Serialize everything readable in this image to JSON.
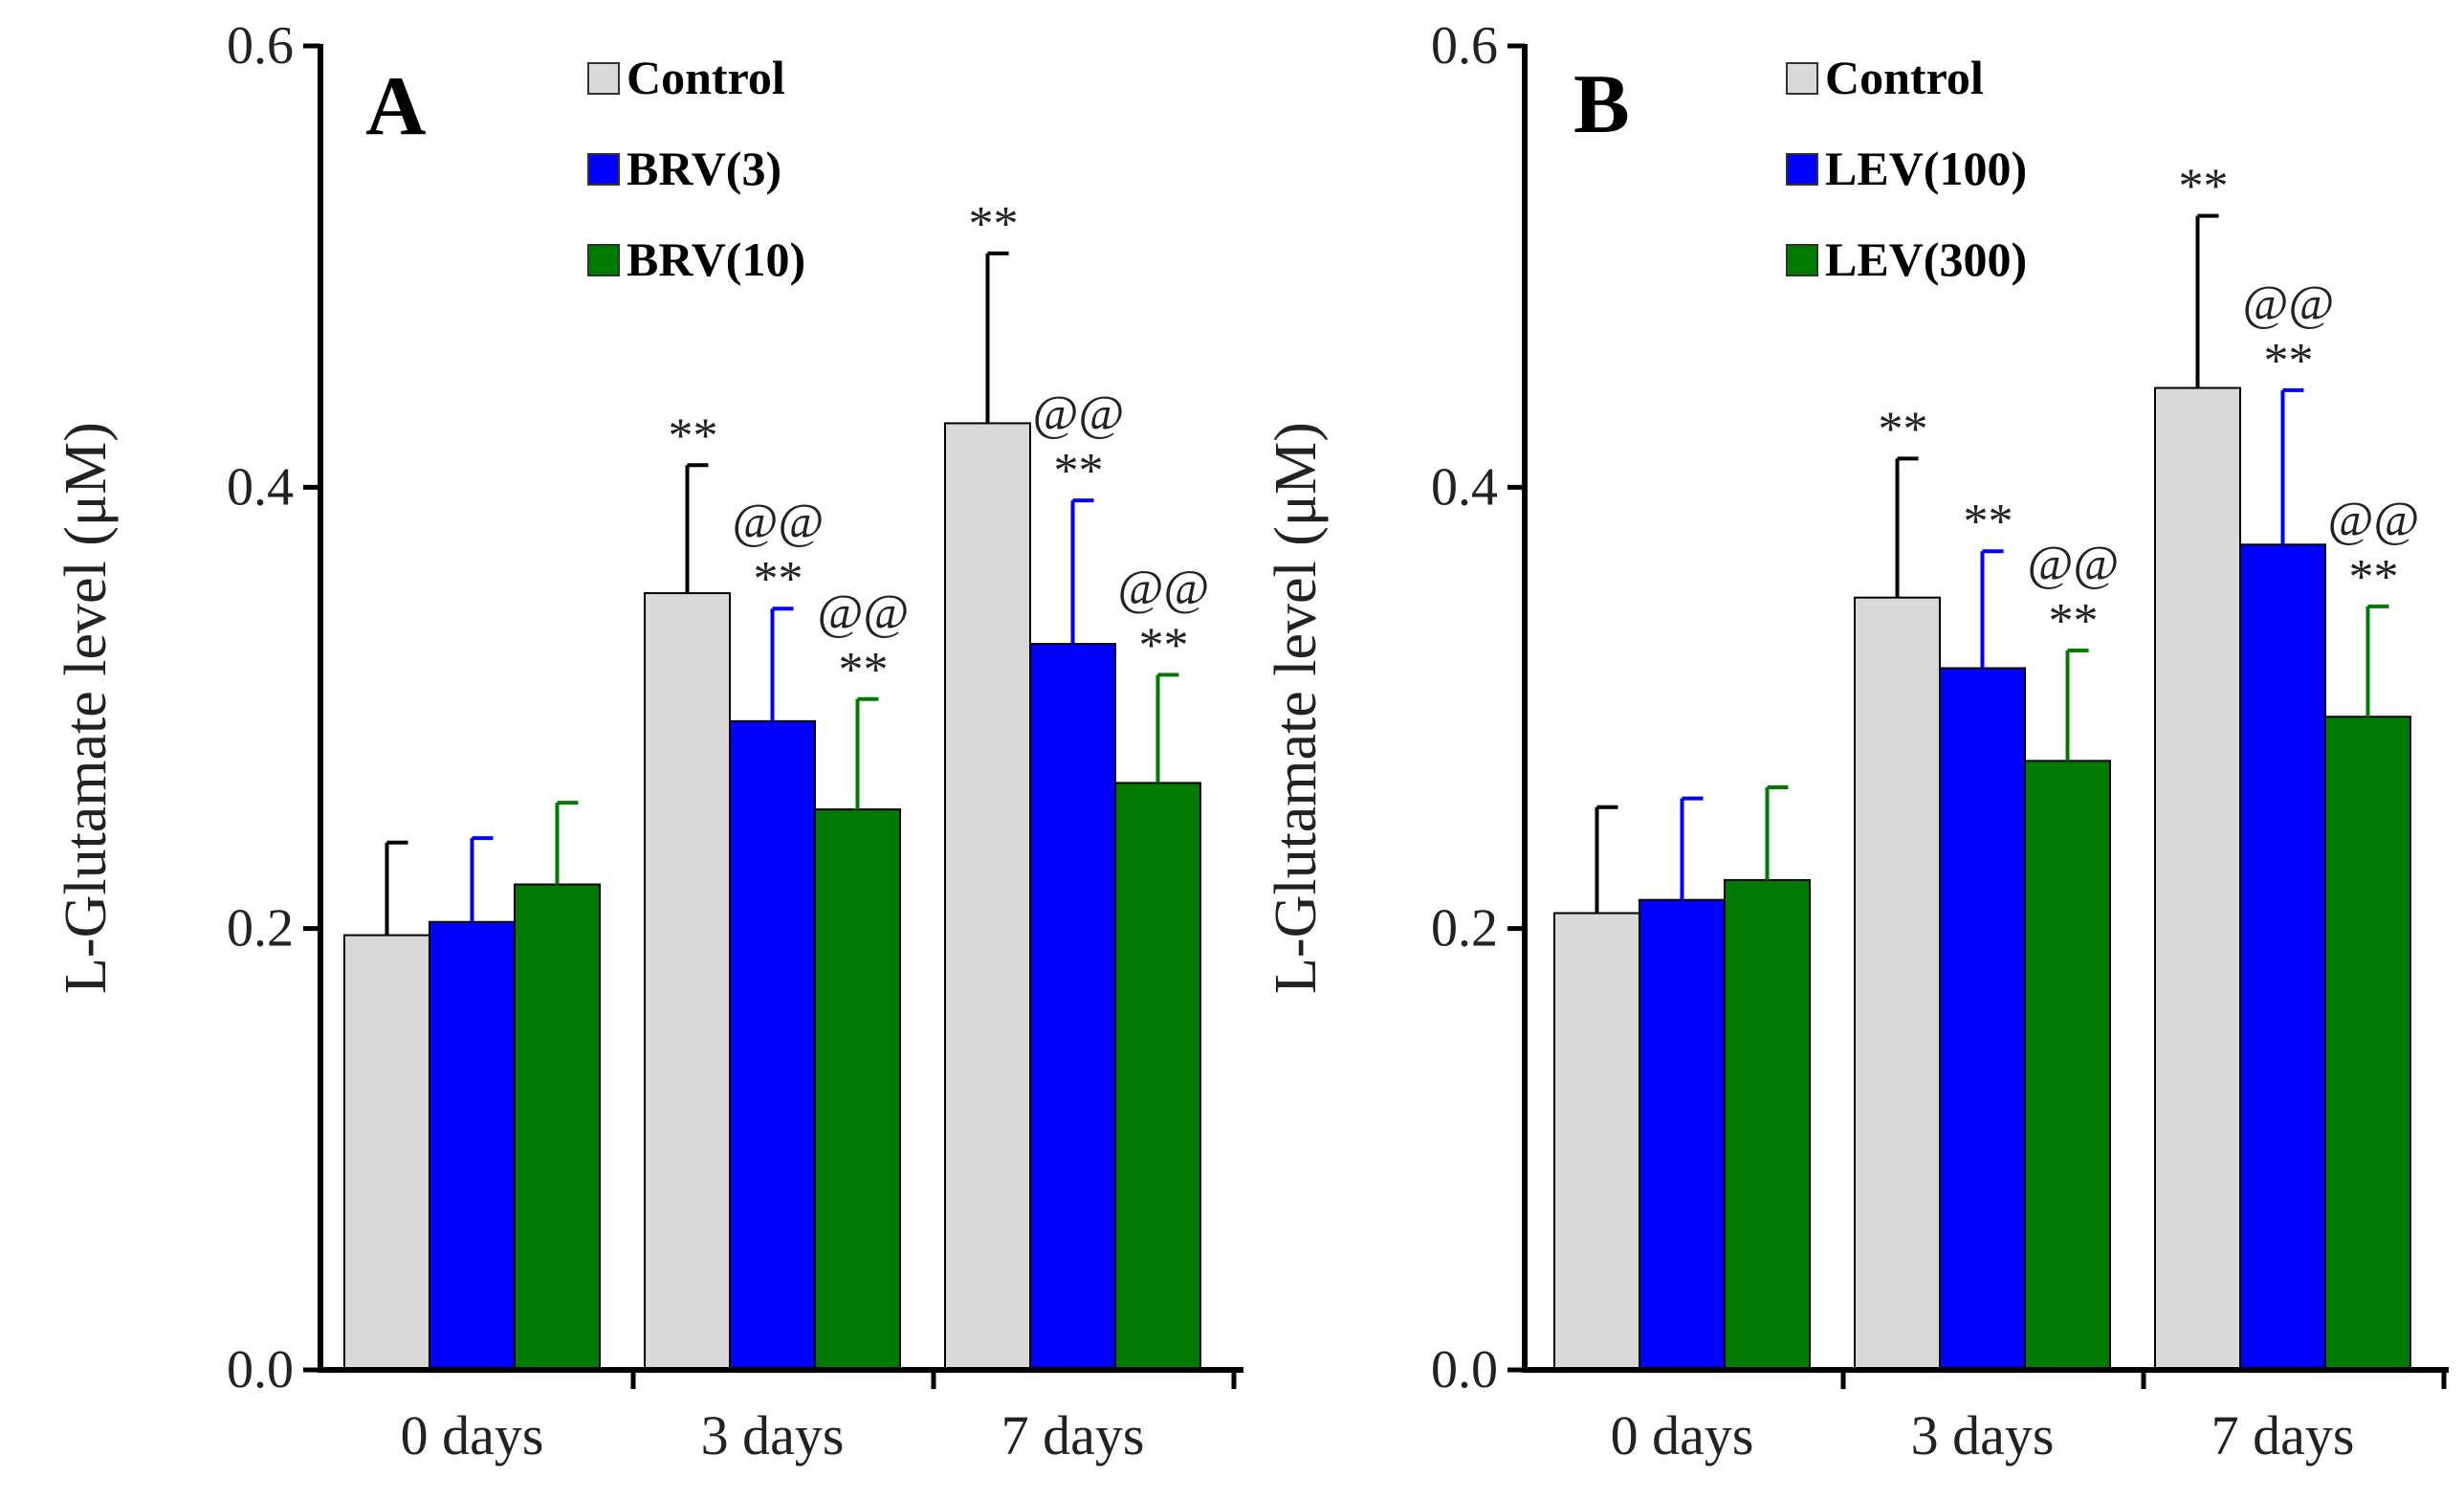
{
  "colors": {
    "control": "#d9d9d9",
    "blue": "#0000ff",
    "green": "#007a00",
    "axis": "#000000",
    "error_control": "#000000"
  },
  "chart_data": [
    {
      "type": "bar",
      "panel_label": "A",
      "title": "",
      "xlabel": "",
      "ylabel": "L-Glutamate  level (μM)",
      "ylim": [
        0,
        0.6
      ],
      "yticks": [
        "0.0",
        "0.2",
        "0.4",
        "0.6"
      ],
      "grid": false,
      "legend_position": "top-center",
      "categories": [
        "0 days",
        "3 days",
        "7 days"
      ],
      "series": [
        {
          "name": "Control",
          "color_key": "control",
          "values": [
            0.197,
            0.352,
            0.429
          ],
          "errors": [
            0.042,
            0.058,
            0.077
          ],
          "annotations": [
            "",
            "**",
            "**"
          ]
        },
        {
          "name": "BRV(3)",
          "color_key": "blue",
          "values": [
            0.203,
            0.294,
            0.329
          ],
          "errors": [
            0.038,
            0.051,
            0.065
          ],
          "annotations": [
            "",
            "@@\n**",
            "@@\n**"
          ]
        },
        {
          "name": "BRV(10)",
          "color_key": "green",
          "values": [
            0.22,
            0.254,
            0.266
          ],
          "errors": [
            0.037,
            0.05,
            0.049
          ],
          "annotations": [
            "",
            "@@\n**",
            "@@\n**"
          ]
        }
      ]
    },
    {
      "type": "bar",
      "panel_label": "B",
      "title": "",
      "xlabel": "",
      "ylabel": "L-Glutamate  level (μM)",
      "ylim": [
        0,
        0.6
      ],
      "yticks": [
        "0.0",
        "0.2",
        "0.4",
        "0.6"
      ],
      "grid": false,
      "legend_position": "top-center",
      "categories": [
        "0 days",
        "3 days",
        "7 days"
      ],
      "series": [
        {
          "name": "Control",
          "color_key": "control",
          "values": [
            0.207,
            0.35,
            0.445
          ],
          "errors": [
            0.048,
            0.063,
            0.078
          ],
          "annotations": [
            "",
            "**",
            "**"
          ]
        },
        {
          "name": "LEV(100)",
          "color_key": "blue",
          "values": [
            0.213,
            0.318,
            0.374
          ],
          "errors": [
            0.046,
            0.053,
            0.07
          ],
          "annotations": [
            "",
            "**",
            "@@\n**"
          ]
        },
        {
          "name": "LEV(300)",
          "color_key": "green",
          "values": [
            0.222,
            0.276,
            0.296
          ],
          "errors": [
            0.042,
            0.05,
            0.05
          ],
          "annotations": [
            "",
            "@@\n**",
            "@@\n**"
          ]
        }
      ]
    }
  ]
}
